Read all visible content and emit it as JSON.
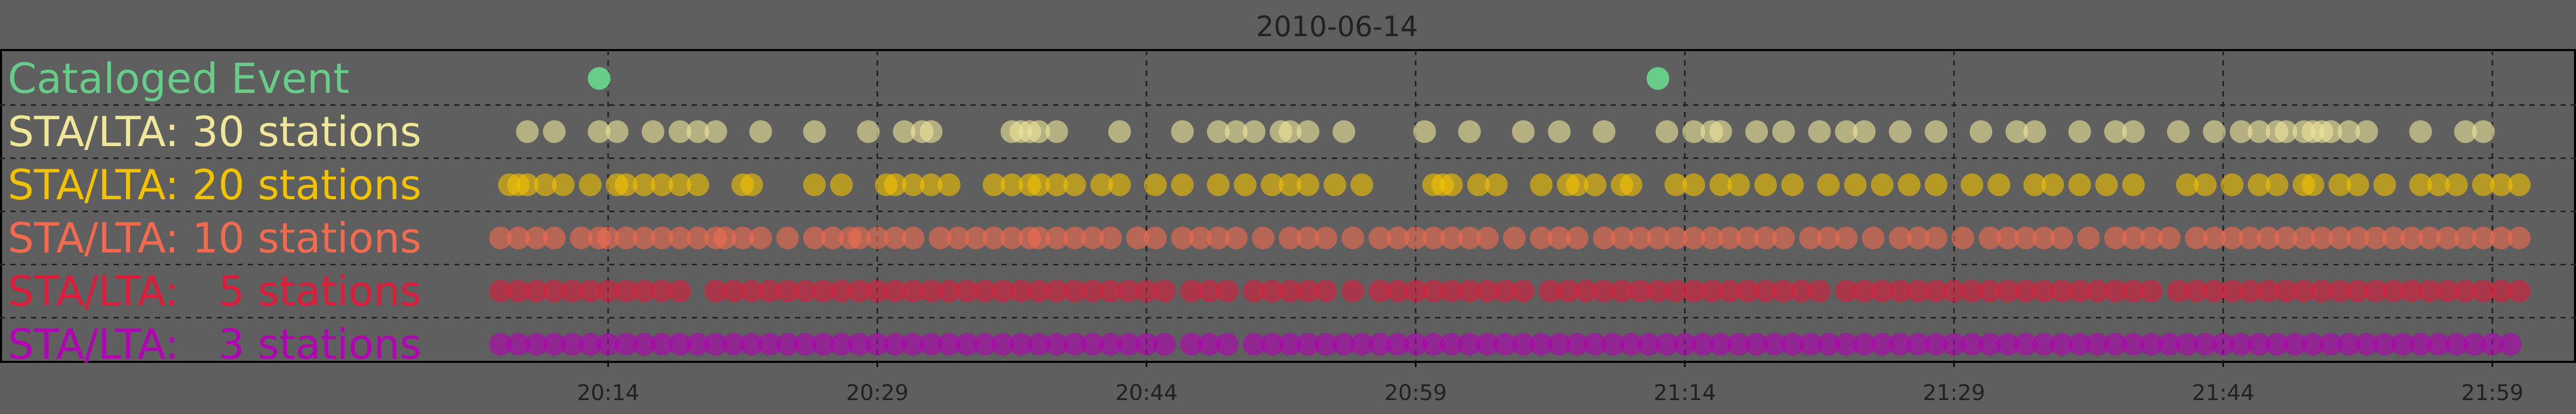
{
  "chart_data": {
    "type": "scatter",
    "title": "2010-06-14",
    "xlabel": "",
    "ylabel": "",
    "x_unit": "time of day",
    "xlim": [
      "20:08",
      "21:59"
    ],
    "x_ticks": [
      "20:14",
      "20:29",
      "20:44",
      "20:59",
      "21:14",
      "21:29",
      "21:44",
      "21:59"
    ],
    "grid": true,
    "legend": "row labels on the left inside the plot",
    "background_color": "#5f5f5f",
    "series": [
      {
        "name": "Cataloged Event",
        "color": "#66cc88",
        "times": [
          "20:13:30",
          "21:12:30"
        ]
      },
      {
        "name": "STA/LTA: 30 stations",
        "color": "#efe69a",
        "times": [
          "20:09:30",
          "20:11:00",
          "20:13:30",
          "20:14:30",
          "20:16:30",
          "20:18:00",
          "20:19:00",
          "20:20:00",
          "20:22:30",
          "20:25:30",
          "20:28:30",
          "20:30:30",
          "20:31:30",
          "20:32:00",
          "20:36:30",
          "20:37:00",
          "20:37:30",
          "20:38:00",
          "20:39:00",
          "20:42:30",
          "20:46:00",
          "20:48:00",
          "20:49:00",
          "20:50:00",
          "20:51:30",
          "20:52:00",
          "20:53:00",
          "20:55:00",
          "20:59:30",
          "21:02:00",
          "21:05:00",
          "21:07:00",
          "21:09:30",
          "21:13:00",
          "21:14:30",
          "21:15:30",
          "21:16:00",
          "21:18:00",
          "21:19:30",
          "21:21:30",
          "21:23:00",
          "21:24:00",
          "21:26:00",
          "21:28:00",
          "21:30:30",
          "21:32:30",
          "21:33:30",
          "21:36:00",
          "21:38:00",
          "21:39:00",
          "21:41:30",
          "21:43:30",
          "21:45:00",
          "21:46:00",
          "21:47:00",
          "21:47:30",
          "21:48:30",
          "21:49:00",
          "21:49:30",
          "21:50:00",
          "21:51:00",
          "21:52:00",
          "21:55:00",
          "21:57:30",
          "21:58:30"
        ]
      },
      {
        "name": "STA/LTA: 20 stations",
        "color": "#f2c200",
        "times": [
          "20:08:30",
          "20:09:00",
          "20:09:30",
          "20:10:30",
          "20:11:30",
          "20:13:00",
          "20:14:30",
          "20:15:00",
          "20:16:00",
          "20:17:00",
          "20:18:00",
          "20:19:00",
          "20:21:30",
          "20:22:00",
          "20:25:30",
          "20:27:00",
          "20:29:30",
          "20:30:00",
          "20:31:00",
          "20:32:00",
          "20:33:00",
          "20:35:30",
          "20:36:30",
          "20:37:30",
          "20:38:00",
          "20:39:00",
          "20:40:00",
          "20:41:30",
          "20:42:30",
          "20:44:30",
          "20:46:00",
          "20:48:00",
          "20:49:30",
          "20:51:00",
          "20:52:00",
          "20:53:00",
          "20:54:30",
          "20:56:00",
          "21:00:00",
          "21:00:30",
          "21:01:00",
          "21:02:30",
          "21:03:30",
          "21:06:00",
          "21:07:30",
          "21:08:00",
          "21:09:00",
          "21:10:30",
          "21:11:00",
          "21:13:30",
          "21:14:30",
          "21:16:00",
          "21:17:00",
          "21:18:30",
          "21:20:00",
          "21:22:00",
          "21:23:30",
          "21:25:00",
          "21:26:30",
          "21:28:00",
          "21:30:00",
          "21:31:30",
          "21:33:30",
          "21:34:30",
          "21:36:00",
          "21:37:30",
          "21:39:00",
          "21:42:00",
          "21:43:00",
          "21:44:30",
          "21:46:00",
          "21:47:00",
          "21:48:30",
          "21:49:00",
          "21:50:30",
          "21:51:30",
          "21:53:00",
          "21:55:00",
          "21:56:00",
          "21:57:00",
          "21:58:30",
          "21:59:30",
          "22:00:30"
        ]
      },
      {
        "name": "STA/LTA: 10 stations",
        "color": "#f26a50",
        "times": [
          "20:08:00",
          "20:09:00",
          "20:10:00",
          "20:11:00",
          "20:12:30",
          "20:13:30",
          "20:14:00",
          "20:15:00",
          "20:16:00",
          "20:17:00",
          "20:18:00",
          "20:19:00",
          "20:20:00",
          "20:20:30",
          "20:21:30",
          "20:22:30",
          "20:24:00",
          "20:25:30",
          "20:26:30",
          "20:27:30",
          "20:28:00",
          "20:29:00",
          "20:30:00",
          "20:31:00",
          "20:32:30",
          "20:33:30",
          "20:34:30",
          "20:35:30",
          "20:36:30",
          "20:37:30",
          "20:38:00",
          "20:39:00",
          "20:40:00",
          "20:41:00",
          "20:42:00",
          "20:43:30",
          "20:44:30",
          "20:46:00",
          "20:47:00",
          "20:48:00",
          "20:49:00",
          "20:50:30",
          "20:52:00",
          "20:53:00",
          "20:54:00",
          "20:55:30",
          "20:57:00",
          "20:58:00",
          "20:59:00",
          "21:00:00",
          "21:01:00",
          "21:02:00",
          "21:03:00",
          "21:04:30",
          "21:06:00",
          "21:07:00",
          "21:08:00",
          "21:09:30",
          "21:10:30",
          "21:11:30",
          "21:12:30",
          "21:13:30",
          "21:14:30",
          "21:15:30",
          "21:16:30",
          "21:17:30",
          "21:18:30",
          "21:19:30",
          "21:21:00",
          "21:22:00",
          "21:23:00",
          "21:24:30",
          "21:26:00",
          "21:27:00",
          "21:28:00",
          "21:29:30",
          "21:31:00",
          "21:32:00",
          "21:33:00",
          "21:34:00",
          "21:35:00",
          "21:36:30",
          "21:38:00",
          "21:39:00",
          "21:40:00",
          "21:41:00",
          "21:42:30",
          "21:43:30",
          "21:44:30",
          "21:45:30",
          "21:46:30",
          "21:47:30",
          "21:48:30",
          "21:49:30",
          "21:50:30",
          "21:51:30",
          "21:52:30",
          "21:53:30",
          "21:54:30",
          "21:55:30",
          "21:56:30",
          "21:57:30",
          "21:58:30",
          "21:59:30",
          "22:00:30"
        ]
      },
      {
        "name": "STA/LTA:   5 stations",
        "color": "#dc1e3c",
        "times": [
          "20:08:00",
          "20:09:00",
          "20:10:00",
          "20:11:00",
          "20:12:00",
          "20:13:00",
          "20:14:00",
          "20:15:00",
          "20:16:00",
          "20:17:00",
          "20:18:00",
          "20:20:00",
          "20:21:00",
          "20:22:00",
          "20:23:00",
          "20:24:00",
          "20:25:00",
          "20:26:00",
          "20:27:00",
          "20:28:00",
          "20:29:00",
          "20:30:00",
          "20:31:00",
          "20:32:00",
          "20:33:00",
          "20:34:00",
          "20:35:00",
          "20:36:00",
          "20:37:00",
          "20:38:00",
          "20:39:00",
          "20:40:00",
          "20:41:00",
          "20:42:00",
          "20:43:00",
          "20:44:00",
          "20:45:00",
          "20:46:30",
          "20:47:30",
          "20:48:30",
          "20:50:00",
          "20:51:00",
          "20:52:00",
          "20:53:00",
          "20:54:00",
          "20:55:30",
          "20:57:00",
          "20:58:00",
          "20:59:00",
          "21:00:00",
          "21:01:00",
          "21:02:00",
          "21:03:00",
          "21:04:00",
          "21:05:00",
          "21:06:30",
          "21:07:30",
          "21:08:30",
          "21:09:30",
          "21:10:30",
          "21:11:30",
          "21:12:30",
          "21:13:30",
          "21:14:30",
          "21:15:30",
          "21:16:30",
          "21:17:30",
          "21:18:30",
          "21:19:30",
          "21:20:30",
          "21:21:30",
          "21:23:00",
          "21:24:00",
          "21:25:00",
          "21:26:00",
          "21:27:00",
          "21:28:00",
          "21:29:00",
          "21:30:00",
          "21:31:00",
          "21:32:00",
          "21:33:00",
          "21:34:00",
          "21:35:00",
          "21:36:00",
          "21:37:00",
          "21:38:00",
          "21:39:00",
          "21:40:00",
          "21:41:30",
          "21:42:30",
          "21:43:30",
          "21:44:30",
          "21:45:30",
          "21:46:30",
          "21:47:30",
          "21:48:30",
          "21:49:30",
          "21:50:30",
          "21:51:30",
          "21:52:30",
          "21:53:30",
          "21:54:30",
          "21:55:30",
          "21:56:30",
          "21:57:30",
          "21:58:30",
          "21:59:30",
          "22:00:30"
        ]
      },
      {
        "name": "STA/LTA:   3 stations",
        "color": "#b400b4",
        "times": [
          "20:08:00",
          "20:09:00",
          "20:10:00",
          "20:11:00",
          "20:12:00",
          "20:13:00",
          "20:14:00",
          "20:15:00",
          "20:16:00",
          "20:17:00",
          "20:18:00",
          "20:19:00",
          "20:20:00",
          "20:21:00",
          "20:22:00",
          "20:23:00",
          "20:24:00",
          "20:25:00",
          "20:26:00",
          "20:27:00",
          "20:28:00",
          "20:29:00",
          "20:30:00",
          "20:31:00",
          "20:32:00",
          "20:33:00",
          "20:34:00",
          "20:35:00",
          "20:36:00",
          "20:37:00",
          "20:38:00",
          "20:39:00",
          "20:40:00",
          "20:41:00",
          "20:42:00",
          "20:43:00",
          "20:44:00",
          "20:45:00",
          "20:46:30",
          "20:47:30",
          "20:48:30",
          "20:50:00",
          "20:51:00",
          "20:52:00",
          "20:53:00",
          "20:54:00",
          "20:55:00",
          "20:56:00",
          "20:57:00",
          "20:58:00",
          "20:59:00",
          "21:00:00",
          "21:01:00",
          "21:02:00",
          "21:03:00",
          "21:04:00",
          "21:05:00",
          "21:06:00",
          "21:07:00",
          "21:08:00",
          "21:09:00",
          "21:10:00",
          "21:11:00",
          "21:12:00",
          "21:13:00",
          "21:14:00",
          "21:15:00",
          "21:16:00",
          "21:17:00",
          "21:18:00",
          "21:19:00",
          "21:20:00",
          "21:21:00",
          "21:22:00",
          "21:23:00",
          "21:24:00",
          "21:25:00",
          "21:26:00",
          "21:27:00",
          "21:28:00",
          "21:29:00",
          "21:30:00",
          "21:31:00",
          "21:32:00",
          "21:33:00",
          "21:34:00",
          "21:35:00",
          "21:36:00",
          "21:37:00",
          "21:38:00",
          "21:39:00",
          "21:40:00",
          "21:41:00",
          "21:42:00",
          "21:43:00",
          "21:44:00",
          "21:45:00",
          "21:46:00",
          "21:47:00",
          "21:48:00",
          "21:49:00",
          "21:50:00",
          "21:51:00",
          "21:52:00",
          "21:53:00",
          "21:54:00",
          "21:55:00",
          "21:56:00",
          "21:57:00",
          "21:58:00",
          "21:59:00",
          "22:00:00"
        ]
      }
    ]
  }
}
